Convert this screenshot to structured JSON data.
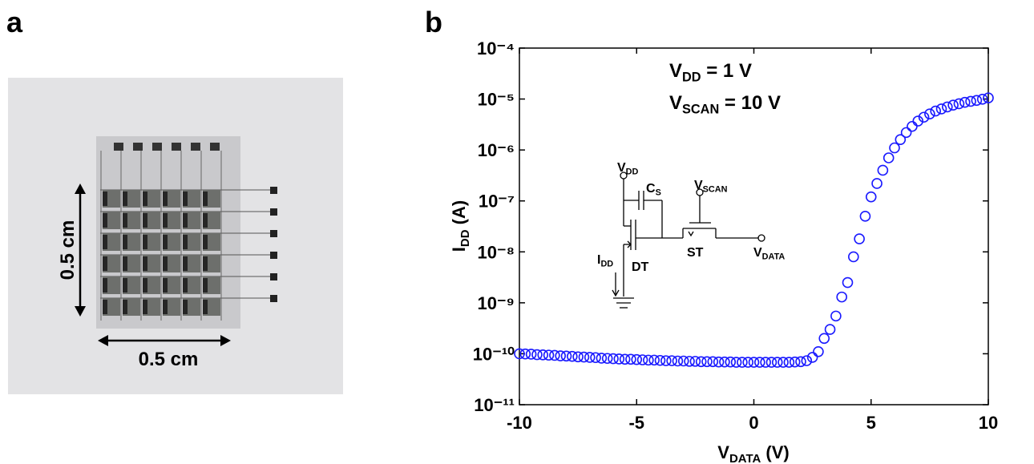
{
  "panels": {
    "a": {
      "label": "a",
      "scale_labels": [
        "0.5 cm",
        "0.5 cm"
      ]
    },
    "b": {
      "label": "b"
    }
  },
  "circuit": {
    "labels": [
      [
        "V",
        "DD"
      ],
      [
        "C",
        "S"
      ],
      [
        "V",
        "SCAN"
      ],
      [
        "I",
        "DD"
      ],
      [
        "DT"
      ],
      [
        "ST"
      ],
      [
        "V",
        "DATA"
      ]
    ]
  },
  "chart_data": {
    "type": "scatter",
    "x_label": [
      "V",
      "DATA",
      " (V)"
    ],
    "y_label": [
      "I",
      "DD",
      " (A)"
    ],
    "annotations": [
      [
        "V",
        "DD",
        " = 1 V"
      ],
      [
        "V",
        "SCAN",
        " = 10 V"
      ]
    ],
    "log_y": true,
    "xlim": [
      -10,
      10
    ],
    "ylim": [
      1e-11,
      0.0001
    ],
    "xticks": [
      -10,
      -5,
      0,
      5,
      10
    ],
    "yticks": [
      {
        "value": 1e-11,
        "label": "10⁻¹¹"
      },
      {
        "value": 1e-10,
        "label": "10⁻¹⁰"
      },
      {
        "value": 1e-09,
        "label": "10⁻⁹"
      },
      {
        "value": 1e-08,
        "label": "10⁻⁸"
      },
      {
        "value": 1e-07,
        "label": "10⁻⁷"
      },
      {
        "value": 1e-06,
        "label": "10⁻⁶"
      },
      {
        "value": 1e-05,
        "label": "10⁻⁵"
      },
      {
        "value": 0.0001,
        "label": "10⁻⁴"
      }
    ],
    "x": [
      -10,
      -9.75,
      -9.5,
      -9.25,
      -9,
      -8.75,
      -8.5,
      -8.25,
      -8,
      -7.75,
      -7.5,
      -7.25,
      -7,
      -6.75,
      -6.5,
      -6.25,
      -6,
      -5.75,
      -5.5,
      -5.25,
      -5,
      -4.75,
      -4.5,
      -4.25,
      -4,
      -3.75,
      -3.5,
      -3.25,
      -3,
      -2.75,
      -2.5,
      -2.25,
      -2,
      -1.75,
      -1.5,
      -1.25,
      -1,
      -0.75,
      -0.5,
      -0.25,
      0,
      0.25,
      0.5,
      0.75,
      1,
      1.25,
      1.5,
      1.75,
      2,
      2.25,
      2.5,
      2.75,
      3,
      3.25,
      3.5,
      3.75,
      4,
      4.25,
      4.5,
      4.75,
      5,
      5.25,
      5.5,
      5.75,
      6,
      6.25,
      6.5,
      6.75,
      7,
      7.25,
      7.5,
      7.75,
      8,
      8.25,
      8.5,
      8.75,
      9,
      9.25,
      9.5,
      9.75,
      10
    ],
    "series": [
      {
        "color": "#1a1aff",
        "values": [
          1e-10,
          9.9e-11,
          9.8e-11,
          9.6e-11,
          9.5e-11,
          9.4e-11,
          9.3e-11,
          9.1e-11,
          9e-11,
          8.9e-11,
          8.7e-11,
          8.6e-11,
          8.5e-11,
          8.4e-11,
          8.2e-11,
          8.1e-11,
          8e-11,
          7.9e-11,
          7.8e-11,
          7.8e-11,
          7.7e-11,
          7.6e-11,
          7.5e-11,
          7.5e-11,
          7.4e-11,
          7.3e-11,
          7.3e-11,
          7.2e-11,
          7.2e-11,
          7.1e-11,
          7.1e-11,
          7e-11,
          7e-11,
          7e-11,
          6.9e-11,
          6.9e-11,
          6.9e-11,
          6.8e-11,
          6.8e-11,
          6.8e-11,
          6.8e-11,
          6.8e-11,
          6.8e-11,
          6.8e-11,
          6.8e-11,
          6.8e-11,
          6.8e-11,
          6.9e-11,
          7e-11,
          7.3e-11,
          8.5e-11,
          1.1e-10,
          2e-10,
          3e-10,
          5.5e-10,
          1.3e-09,
          2.5e-09,
          8e-09,
          1.8e-08,
          5e-08,
          1.2e-07,
          2.2e-07,
          4e-07,
          7e-07,
          1.1e-06,
          1.6e-06,
          2.2e-06,
          2.9e-06,
          3.7e-06,
          4.4e-06,
          5.1e-06,
          5.8e-06,
          6.4e-06,
          7e-06,
          7.6e-06,
          8.1e-06,
          8.6e-06,
          9e-06,
          9.4e-06,
          9.9e-06,
          1.05e-05
        ]
      }
    ]
  }
}
